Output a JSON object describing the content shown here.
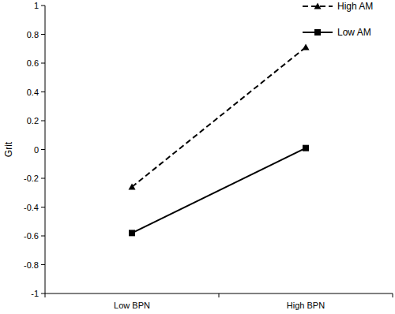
{
  "chart_data": {
    "type": "line",
    "y_label": "Grit",
    "categories": [
      "Low BPN",
      "High BPN"
    ],
    "series": [
      {
        "name": "High AM",
        "color": "#000000",
        "marker": "triangle",
        "line_style": "dashed",
        "values": [
          -0.26,
          0.71
        ]
      },
      {
        "name": "Low AM",
        "color": "#000000",
        "marker": "square",
        "line_style": "solid",
        "values": [
          -0.58,
          0.01
        ]
      }
    ],
    "ylim": [
      -1,
      1
    ],
    "yticks": [
      -1,
      -0.8,
      -0.6,
      -0.4,
      -0.2,
      0,
      0.2,
      0.4,
      0.6,
      0.8,
      1
    ],
    "grid": false,
    "legend": "top-right"
  }
}
